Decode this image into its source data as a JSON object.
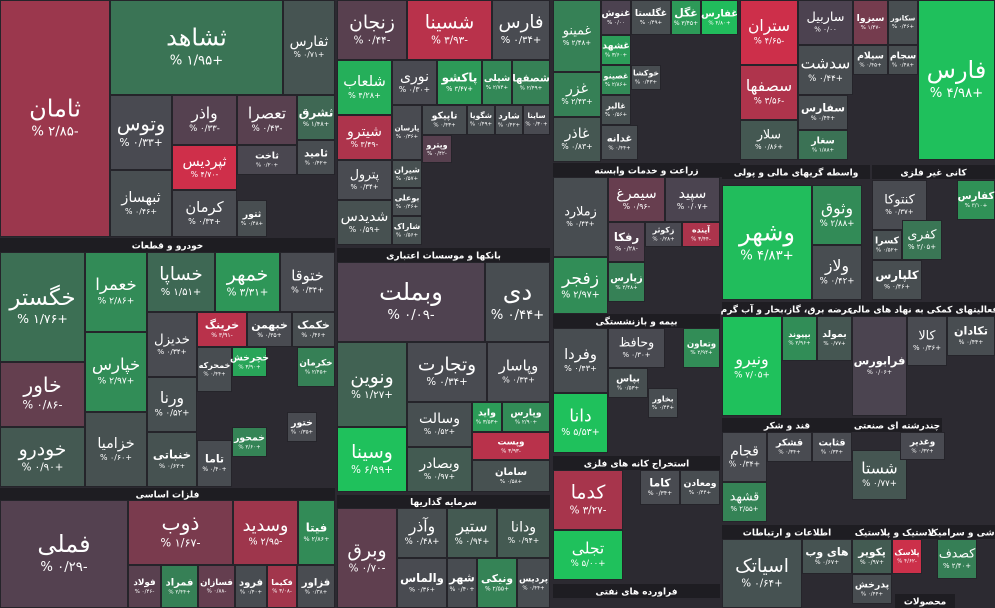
{
  "chart_data": {
    "type": "treemap",
    "colors": {
      "negative": "#d72e4a",
      "neutral": "#4c4250",
      "positive": "#1fc15c"
    },
    "sectors": [
      {
        "tiles": [
          {
            "name": "ثامان",
            "value": -2.85,
            "value_label": "% ۲/۸۵-"
          },
          {
            "name": "ثشاهد",
            "value": 1.95,
            "value_label": "% ۱/۹۵+"
          },
          {
            "name": "ثفارس",
            "value": 0.71,
            "value_label": "% ۰/۷۱+"
          },
          {
            "name": "وتوس",
            "value": 0.33,
            "value_label": "% ۰/۳۳+"
          },
          {
            "name": "واذر",
            "value": -0.33,
            "value_label": "% ۰/۳۳-"
          },
          {
            "name": "تعصرا",
            "value": -0.43,
            "value_label": "% ۰/۴۳-"
          },
          {
            "name": "ثشرق",
            "value": 1.48,
            "value_label": "% ۱/۴۸+"
          },
          {
            "name": "ثامید",
            "value": 0.42,
            "value_label": "% ۰/۴۲+"
          },
          {
            "name": "ثاخت",
            "value": 0.2,
            "value_label": "% ۰/۲۰+"
          },
          {
            "name": "ثپردیس",
            "value": -4.7,
            "value_label": "% ۴/۷۰-"
          },
          {
            "name": "ثبهساز",
            "value": 0.46,
            "value_label": "% ۰/۴۶+"
          },
          {
            "name": "کرمان",
            "value": 0.34,
            "value_label": "% ۰/۳۴+"
          },
          {
            "name": "ثتور",
            "value": 0.48,
            "value_label": "% ۰/۴۸+"
          }
        ]
      },
      {
        "name": "خودرو و قطعات",
        "tiles": [
          {
            "name": "خگستر",
            "value": 1.76,
            "value_label": "% ۱/۷۶+"
          },
          {
            "name": "خاور",
            "value": -0.86,
            "value_label": "% ۰/۸۶-"
          },
          {
            "name": "خودرو",
            "value": 0.9,
            "value_label": "% ۰/۹۰+"
          },
          {
            "name": "خعمرا",
            "value": 2.86,
            "value_label": "% ۲/۸۶+"
          },
          {
            "name": "خپارس",
            "value": 2.97,
            "value_label": "% ۲/۹۷+"
          },
          {
            "name": "خزامیا",
            "value": 0.6,
            "value_label": "% ۰/۶۰+"
          },
          {
            "name": "خساپا",
            "value": 1.51,
            "value_label": "% ۱/۵۱+"
          },
          {
            "name": "خمهر",
            "value": 3.31,
            "value_label": "% ۳/۳۱+"
          },
          {
            "name": "ختوقا",
            "value": 0.34,
            "value_label": "% ۰/۳۴+"
          },
          {
            "name": "خدیزل",
            "value": 0.34,
            "value_label": "% ۰/۳۴+"
          },
          {
            "name": "خرینگ",
            "value": -3.91,
            "value_label": "% ۳/۹۱-"
          },
          {
            "name": "خبهمن",
            "value": 0.35,
            "value_label": "% ۰/۳۵+"
          },
          {
            "name": "خکمک",
            "value": 0.46,
            "value_label": "% ۰/۴۶+"
          },
          {
            "name": "ورنا",
            "value": 0.52,
            "value_label": "% ۰/۵۲+"
          },
          {
            "name": "خنباتی",
            "value": 0.62,
            "value_label": "% ۰/۶۲+"
          },
          {
            "name": "خمحرکه",
            "value": 0.44,
            "value_label": "% ۰/۴۴+"
          },
          {
            "name": "خچرخش",
            "value": 3.9,
            "value_label": "% ۳/۹۰+"
          },
          {
            "name": "خکرمان",
            "value": 2.45,
            "value_label": "% ۲/۴۵+"
          },
          {
            "name": "خمحور",
            "value": 2.6,
            "value_label": "% ۲/۶۰+"
          },
          {
            "name": "تاما",
            "value": 0.4,
            "value_label": "% ۰/۴۰+"
          },
          {
            "name": "ختور",
            "value": 0.35,
            "value_label": "% ۰/۳۵+"
          }
        ]
      },
      {
        "name": "فلزات اساسی",
        "tiles": [
          {
            "name": "فملی",
            "value": -0.29,
            "value_label": "% ۰/۲۹-"
          },
          {
            "name": "ذوب",
            "value": -1.67,
            "value_label": "% ۱/۶۷-"
          },
          {
            "name": "وسدید",
            "value": -2.95,
            "value_label": "% ۲/۹۵-"
          },
          {
            "name": "فیتا",
            "value": 2.86,
            "value_label": "% ۲/۸۶+"
          },
          {
            "name": "فولاد",
            "value": -0.46,
            "value_label": "% ۰/۴۶-"
          },
          {
            "name": "فمراد",
            "value": 2.44,
            "value_label": "% ۲/۴۴+"
          },
          {
            "name": "فسازان",
            "value": -0.88,
            "value_label": "% ۰/۸۸-"
          },
          {
            "name": "فرود",
            "value": 0.4,
            "value_label": "% ۰/۴۰+"
          },
          {
            "name": "فکیما",
            "value": -3.08,
            "value_label": "% ۳/۰۸-"
          },
          {
            "name": "فزاور",
            "value": 0.38,
            "value_label": "% ۰/۳۸+"
          }
        ]
      },
      {
        "tiles": [
          {
            "name": "زنجان",
            "value": -0.44,
            "value_label": "% ۰/۴۴-"
          },
          {
            "name": "شسینا",
            "value": -3.93,
            "value_label": "% ۳/۹۳-"
          },
          {
            "name": "فارس",
            "value": 0.34,
            "value_label": "% ۰/۳۴+"
          },
          {
            "name": "شلعاب",
            "value": 4.28,
            "value_label": "% ۴/۲۸+"
          },
          {
            "name": "نوری",
            "value": 0.3,
            "value_label": "% ۰/۳۰+"
          },
          {
            "name": "پاکشو",
            "value": 3.47,
            "value_label": "% ۳/۴۷+"
          },
          {
            "name": "شپلی",
            "value": 2.74,
            "value_label": "% ۲/۷۴+"
          },
          {
            "name": "شصفها",
            "value": 2.49,
            "value_label": "% ۲/۴۹+"
          },
          {
            "name": "پارسان",
            "value": 0.36,
            "value_label": "% ۰/۳۶+"
          },
          {
            "name": "تاپیکو",
            "value": 0.43,
            "value_label": "% ۰/۴۳+"
          },
          {
            "name": "شگویا",
            "value": 0.49,
            "value_label": "% ۰/۴۹+"
          },
          {
            "name": "شارد",
            "value": 0.42,
            "value_label": "% ۰/۴۲+"
          },
          {
            "name": "ساینا",
            "value": 0.3,
            "value_label": "% ۰/۳۰+"
          },
          {
            "name": "شیترو",
            "value": -3.49,
            "value_label": "% ۳/۴۹-"
          },
          {
            "name": "شیران",
            "value": 0.57,
            "value_label": "% ۰/۵۷+"
          },
          {
            "name": "وپترو",
            "value": -0.42,
            "value_label": "% ۰/۴۲-"
          },
          {
            "name": "پترول",
            "value": 0.34,
            "value_label": "% ۰/۳۴+"
          },
          {
            "name": "بوعلی",
            "value": 0.46,
            "value_label": "% ۰/۴۶+"
          },
          {
            "name": "شدیدس",
            "value": 0.59,
            "value_label": "% ۰/۵۹+"
          },
          {
            "name": "شاراک",
            "value": 0.56,
            "value_label": "% ۰/۵۶+"
          }
        ]
      },
      {
        "name": "بانکها و موسسات اعتباری",
        "tiles": [
          {
            "name": "وبملت",
            "value": -0.09,
            "value_label": "% ۰/۰۹-"
          },
          {
            "name": "دی",
            "value": 0.44,
            "value_label": "% ۰/۴۴+"
          },
          {
            "name": "ونوین",
            "value": 1.27,
            "value_label": "% ۱/۲۷+"
          },
          {
            "name": "وسینا",
            "value": 6.99,
            "value_label": "% ۶/۹۹+"
          },
          {
            "name": "وتجارت",
            "value": 0.34,
            "value_label": "% ۰/۳۴+"
          },
          {
            "name": "وپاسار",
            "value": 0.34,
            "value_label": "% ۰/۳۴+"
          },
          {
            "name": "وسالت",
            "value": 0.52,
            "value_label": "% ۰/۵۲+"
          },
          {
            "name": "واید",
            "value": 3.53,
            "value_label": "% ۳/۵۳+"
          },
          {
            "name": "وپارس",
            "value": 2.9,
            "value_label": "% ۲/۹۰+"
          },
          {
            "name": "وپست",
            "value": -3.93,
            "value_label": "% ۳/۹۳-"
          },
          {
            "name": "سامان",
            "value": 0.58,
            "value_label": "% ۰/۵۸+"
          },
          {
            "name": "وبصادر",
            "value": 0.97,
            "value_label": "% ۰/۹۷+"
          }
        ]
      },
      {
        "name": "سرمایه گذاریها",
        "tiles": [
          {
            "name": "وبرق",
            "value": -0.7,
            "value_label": "% ۰/۷۰-"
          },
          {
            "name": "وآذر",
            "value": 0.48,
            "value_label": "% ۰/۴۸+"
          },
          {
            "name": "ستیر",
            "value": 0.94,
            "value_label": "% ۰/۹۴+"
          },
          {
            "name": "ودانا",
            "value": 0.94,
            "value_label": "% ۰/۹۴+"
          },
          {
            "name": "والماس",
            "value": 0.36,
            "value_label": "% ۰/۳۶+"
          },
          {
            "name": "شهر",
            "value": 0.4,
            "value_label": "% ۰/۴۰+"
          },
          {
            "name": "ونیکی",
            "value": 2.55,
            "value_label": "% ۲/۵۵+"
          },
          {
            "name": "پردیس",
            "value": 0.44,
            "value_label": "% ۰/۴۴+"
          }
        ]
      },
      {
        "tiles": [
          {
            "name": "غمینو",
            "value": 2.48,
            "value_label": "% ۲/۴۸+"
          },
          {
            "name": "غزر",
            "value": 2.43,
            "value_label": "% ۲/۴۳+"
          },
          {
            "name": "غاذر",
            "value": 0.83,
            "value_label": "% ۰/۸۳+"
          },
          {
            "name": "غنوش",
            "value": 0,
            "value_label": "% ۰/۰۰"
          },
          {
            "name": "غگلستا",
            "value": 0.49,
            "value_label": "% ۰/۴۹+"
          },
          {
            "name": "غگل",
            "value": 3.45,
            "value_label": "% ۳/۴۵+"
          },
          {
            "name": "غفارس",
            "value": 4.8,
            "value_label": "% ۴/۸۰+"
          },
          {
            "name": "غشهد",
            "value": 3.6,
            "value_label": "% ۳/۶۰+"
          },
          {
            "name": "غصینو",
            "value": 2.86,
            "value_label": "% ۲/۸۶+"
          },
          {
            "name": "خوکشا",
            "value": 0.43,
            "value_label": "% ۰/۴۳+"
          },
          {
            "name": "غالبر",
            "value": 0.56,
            "value_label": "% ۰/۵۶+"
          },
          {
            "name": "غدانه",
            "value": 0.44,
            "value_label": "% ۰/۴۴+"
          }
        ]
      },
      {
        "name": "زراعت و خدمات وابسته",
        "tiles": [
          {
            "name": "زملارد",
            "value": 0.44,
            "value_label": "% ۰/۴۴+"
          },
          {
            "name": "زفجر",
            "value": 2.97,
            "value_label": "% ۲/۹۷+"
          },
          {
            "name": "سیمرغ",
            "value": -0.96,
            "value_label": "% ۰/۹۶-"
          },
          {
            "name": "سپید",
            "value": 0.07,
            "value_label": "% ۰/۰۷+"
          },
          {
            "name": "رفکا",
            "value": -0.28,
            "value_label": "% ۰/۲۸-"
          },
          {
            "name": "زکوثر",
            "value": 0.28,
            "value_label": "% ۰/۲۸+"
          },
          {
            "name": "آینده",
            "value": -3.44,
            "value_label": "% ۳/۴۴-"
          },
          {
            "name": "زپارس",
            "value": 2.48,
            "value_label": "% ۲/۴۸+"
          }
        ]
      },
      {
        "name": "بیمه و بازنشستگی",
        "tiles": [
          {
            "name": "وفردا",
            "value": 0.43,
            "value_label": "% ۰/۴۳+"
          },
          {
            "name": "دانا",
            "value": 5.53,
            "value_label": "% ۵/۵۳+"
          },
          {
            "name": "وحافظ",
            "value": 0.3,
            "value_label": "% ۰/۳۰+"
          },
          {
            "name": "وتعاون",
            "value": 2.94,
            "value_label": "% ۲/۹۴+"
          },
          {
            "name": "بپاس",
            "value": 0.53,
            "value_label": "% ۰/۵۳+"
          },
          {
            "name": "بخاور",
            "value": 0.44,
            "value_label": "% ۰/۴۴+"
          }
        ]
      },
      {
        "name": "استخراج کانه های فلزی",
        "tiles": [
          {
            "name": "کدما",
            "value": -3.27,
            "value_label": "% ۳/۲۷-"
          },
          {
            "name": "تجلی",
            "value": 5,
            "value_label": "% ۵/۰۰+"
          },
          {
            "name": "کاما",
            "value": 0.34,
            "value_label": "% ۰/۳۴+"
          },
          {
            "name": "ومعادن",
            "value": 0.44,
            "value_label": "% ۰/۴۴+"
          }
        ]
      },
      {
        "name": "فراورده های نفتی",
        "tiles": []
      },
      {
        "tiles": [
          {
            "name": "ستران",
            "value": -4.65,
            "value_label": "% ۴/۶۵-"
          },
          {
            "name": "سصفها",
            "value": -3.56,
            "value_label": "% ۳/۵۶-"
          },
          {
            "name": "سلار",
            "value": 0.86,
            "value_label": "% ۰/۸۶+"
          },
          {
            "name": "ساربیل",
            "value": 0,
            "value_label": "% ۰/۰۰"
          },
          {
            "name": "سیزوا",
            "value": -1.47,
            "value_label": "% ۱/۴۷-"
          },
          {
            "name": "سکانور",
            "value": 0.46,
            "value_label": "% ۰/۴۶+"
          },
          {
            "name": "سدشت",
            "value": 0.44,
            "value_label": "% ۰/۴۴+"
          },
          {
            "name": "سیلام",
            "value": 0.45,
            "value_label": "% ۰/۴۵+"
          },
          {
            "name": "سجام",
            "value": 0.48,
            "value_label": "% ۰/۴۸+"
          },
          {
            "name": "سفارس",
            "value": 0.44,
            "value_label": "% ۰/۴۴+"
          },
          {
            "name": "سغار",
            "value": 1.88,
            "value_label": "% ۱/۸۸+"
          },
          {
            "name": "فارس",
            "value": 4.98,
            "value_label": "% ۴/۹۸+"
          }
        ]
      },
      {
        "name": "واسطه گریهای مالی و پولی",
        "tiles": [
          {
            "name": "وشهر",
            "value": 4.83,
            "value_label": "% ۴/۸۳+"
          },
          {
            "name": "وثوق",
            "value": 2.88,
            "value_label": "% ۲/۸۸+"
          },
          {
            "name": "ولاز",
            "value": 0.42,
            "value_label": "% ۰/۴۲+"
          }
        ]
      },
      {
        "name": "کانی غیر فلزی",
        "tiles": [
          {
            "name": "کنتوکا",
            "value": 0.37,
            "value_label": "% ۰/۳۷+"
          },
          {
            "name": "کسرا",
            "value": 0.52,
            "value_label": "% ۰/۵۲+"
          },
          {
            "name": "کفری",
            "value": 2.05,
            "value_label": "% ۲/۰۵+"
          },
          {
            "name": "کلپارس",
            "value": 0.46,
            "value_label": "% ۰/۴۶+"
          },
          {
            "name": "کفارس",
            "value": 3.1,
            "value_label": "% ۳/۱۰+"
          }
        ]
      },
      {
        "name": "عرضه برق، گاز،بخار و آب گرم",
        "tiles": [
          {
            "name": "ونیرو",
            "value": 7.05,
            "value_label": "% ۷/۰۵+"
          },
          {
            "name": "بپیوند",
            "value": 2.96,
            "value_label": "% ۲/۹۶+"
          },
          {
            "name": "بمولد",
            "value": 0.77,
            "value_label": "% ۰/۷۷+"
          }
        ]
      },
      {
        "name": "فعالیتهای کمکی به نهاد های مالی",
        "tiles": [
          {
            "name": "فرابورس",
            "value": 0.06,
            "value_label": "% ۰/۰۶+"
          },
          {
            "name": "کالا",
            "value": 0.36,
            "value_label": "% ۰/۳۶+"
          },
          {
            "name": "تکادان",
            "value": 0.44,
            "value_label": "% ۰/۴۴+"
          }
        ]
      },
      {
        "name": "قند و شکر",
        "tiles": [
          {
            "name": "قجام",
            "value": 0.34,
            "value_label": "% ۰/۳۴+"
          },
          {
            "name": "قشهد",
            "value": 2.55,
            "value_label": "% ۲/۵۵+"
          },
          {
            "name": "قشکر",
            "value": 0.34,
            "value_label": "% ۰/۳۴+"
          },
          {
            "name": "قثابت",
            "value": 0.34,
            "value_label": "% ۰/۳۴+"
          }
        ]
      },
      {
        "name": "چندرشته ای صنعتی",
        "tiles": [
          {
            "name": "شستا",
            "value": 0.77,
            "value_label": "% ۰/۷۷+"
          },
          {
            "name": "وغدیر",
            "value": 0.32,
            "value_label": "% ۰/۳۲+"
          }
        ]
      },
      {
        "name": "اطلاعات و ارتباطات",
        "tiles": [
          {
            "name": "اسیاتک",
            "value": 0.64,
            "value_label": "% ۰/۶۴+"
          },
          {
            "name": "های وب",
            "value": 0.67,
            "value_label": "% ۰/۶۷+"
          }
        ]
      },
      {
        "name": "لاستیک و پلاستیک",
        "tiles": [
          {
            "name": "پکویر",
            "value": 0.97,
            "value_label": "% ۰/۹۷+"
          },
          {
            "name": "پلاسک",
            "value": -4.62,
            "value_label": "% ۴/۶۲-"
          },
          {
            "name": "پدرخش",
            "value": 0.44,
            "value_label": "% ۰/۴۴+"
          }
        ]
      },
      {
        "name": "کاشی و سرامیک",
        "tiles": [
          {
            "name": "کصدف",
            "value": 2.4,
            "value_label": "% ۲/۴۰+"
          }
        ]
      },
      {
        "name": "محصولات",
        "tiles": []
      }
    ]
  }
}
